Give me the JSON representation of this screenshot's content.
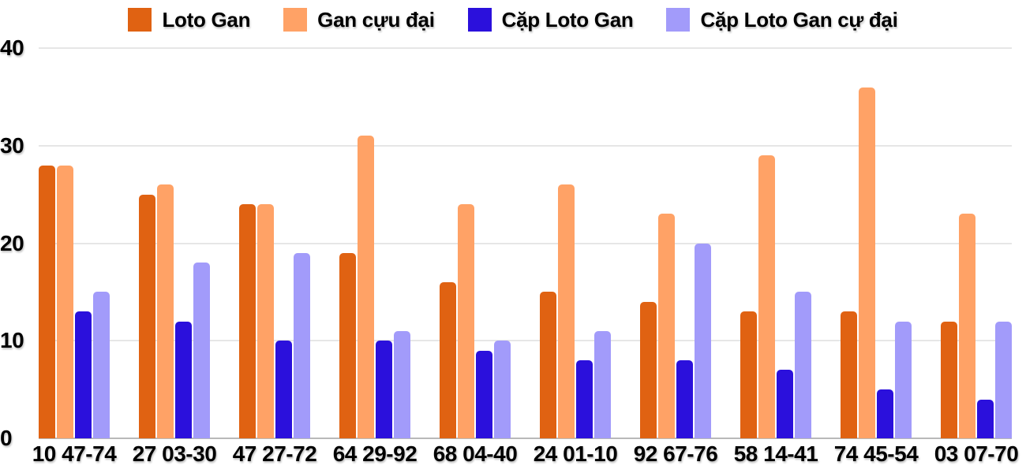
{
  "chart_data": {
    "type": "bar",
    "title": "",
    "xlabel": "",
    "ylabel": "",
    "categories": [
      "10 47-74",
      "27 03-30",
      "47 27-72",
      "64 29-92",
      "68 04-40",
      "24 01-10",
      "92 67-76",
      "58 14-41",
      "74 45-54",
      "03 07-70"
    ],
    "series": [
      {
        "name": "Loto Gan",
        "color": "#E06212",
        "values": [
          28,
          25,
          24,
          19,
          16,
          15,
          14,
          13,
          13,
          12
        ]
      },
      {
        "name": "Gan cựu đại",
        "color": "#FFA266",
        "values": [
          28,
          26,
          24,
          31,
          24,
          26,
          23,
          29,
          36,
          23
        ]
      },
      {
        "name": "Cặp Loto Gan",
        "color": "#2B10DC",
        "values": [
          13,
          12,
          10,
          10,
          9,
          8,
          8,
          7,
          5,
          4
        ]
      },
      {
        "name": "Cặp Loto Gan cự đại",
        "color": "#A29BFA",
        "values": [
          15,
          18,
          19,
          11,
          10,
          11,
          20,
          15,
          12,
          12
        ]
      }
    ],
    "ylim": [
      0,
      40
    ],
    "yticks": [
      0,
      10,
      20,
      30,
      40
    ],
    "grid": true,
    "legend_position": "top",
    "colors": {
      "gridline": "#e6e6e6",
      "axis_baseline": "#b9b9b9",
      "label_text": "#000000",
      "background": "#ffffff"
    }
  }
}
